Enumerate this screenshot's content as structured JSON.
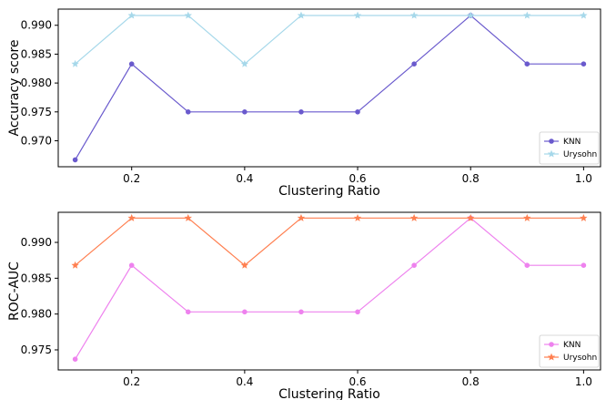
{
  "chart_data": [
    {
      "type": "line",
      "xlabel": "Clustering Ratio",
      "ylabel": "Accuracy score",
      "x": [
        0.1,
        0.2,
        0.3,
        0.4,
        0.5,
        0.6,
        0.7,
        0.8,
        0.9,
        1.0
      ],
      "xlim": [
        0.07,
        1.03
      ],
      "ylim": [
        0.9655,
        0.9928
      ],
      "xticks": [
        "0.2",
        "0.4",
        "0.6",
        "0.8",
        "1.0"
      ],
      "yticks": [
        "0.970",
        "0.975",
        "0.980",
        "0.985",
        "0.990"
      ],
      "grid": false,
      "legend_position": "lower-right",
      "series": [
        {
          "name": "KNN",
          "color": "#6a5acd",
          "marker": "circle",
          "values": [
            0.9667,
            0.9833,
            0.975,
            0.975,
            0.975,
            0.975,
            0.9833,
            0.9917,
            0.9833,
            0.9833
          ]
        },
        {
          "name": "Urysohn",
          "color": "#a6d8ea",
          "marker": "star",
          "values": [
            0.9833,
            0.9917,
            0.9917,
            0.9833,
            0.9917,
            0.9917,
            0.9917,
            0.9917,
            0.9917,
            0.9917
          ]
        }
      ]
    },
    {
      "type": "line",
      "xlabel": "Clustering Ratio",
      "ylabel": "ROC-AUC",
      "x": [
        0.1,
        0.2,
        0.3,
        0.4,
        0.5,
        0.6,
        0.7,
        0.8,
        0.9,
        1.0
      ],
      "xlim": [
        0.07,
        1.03
      ],
      "ylim": [
        0.9722,
        0.9942
      ],
      "xticks": [
        "0.2",
        "0.4",
        "0.6",
        "0.8",
        "1.0"
      ],
      "yticks": [
        "0.975",
        "0.980",
        "0.985",
        "0.990"
      ],
      "grid": false,
      "legend_position": "lower-right",
      "series": [
        {
          "name": "KNN",
          "color": "#ee82ee",
          "marker": "circle",
          "values": [
            0.9737,
            0.9868,
            0.9803,
            0.9803,
            0.9803,
            0.9803,
            0.9868,
            0.9934,
            0.9868,
            0.9868
          ]
        },
        {
          "name": "Urysohn",
          "color": "#ff7f50",
          "marker": "star",
          "values": [
            0.9868,
            0.9934,
            0.9934,
            0.9868,
            0.9934,
            0.9934,
            0.9934,
            0.9934,
            0.9934,
            0.9934
          ]
        }
      ]
    }
  ]
}
